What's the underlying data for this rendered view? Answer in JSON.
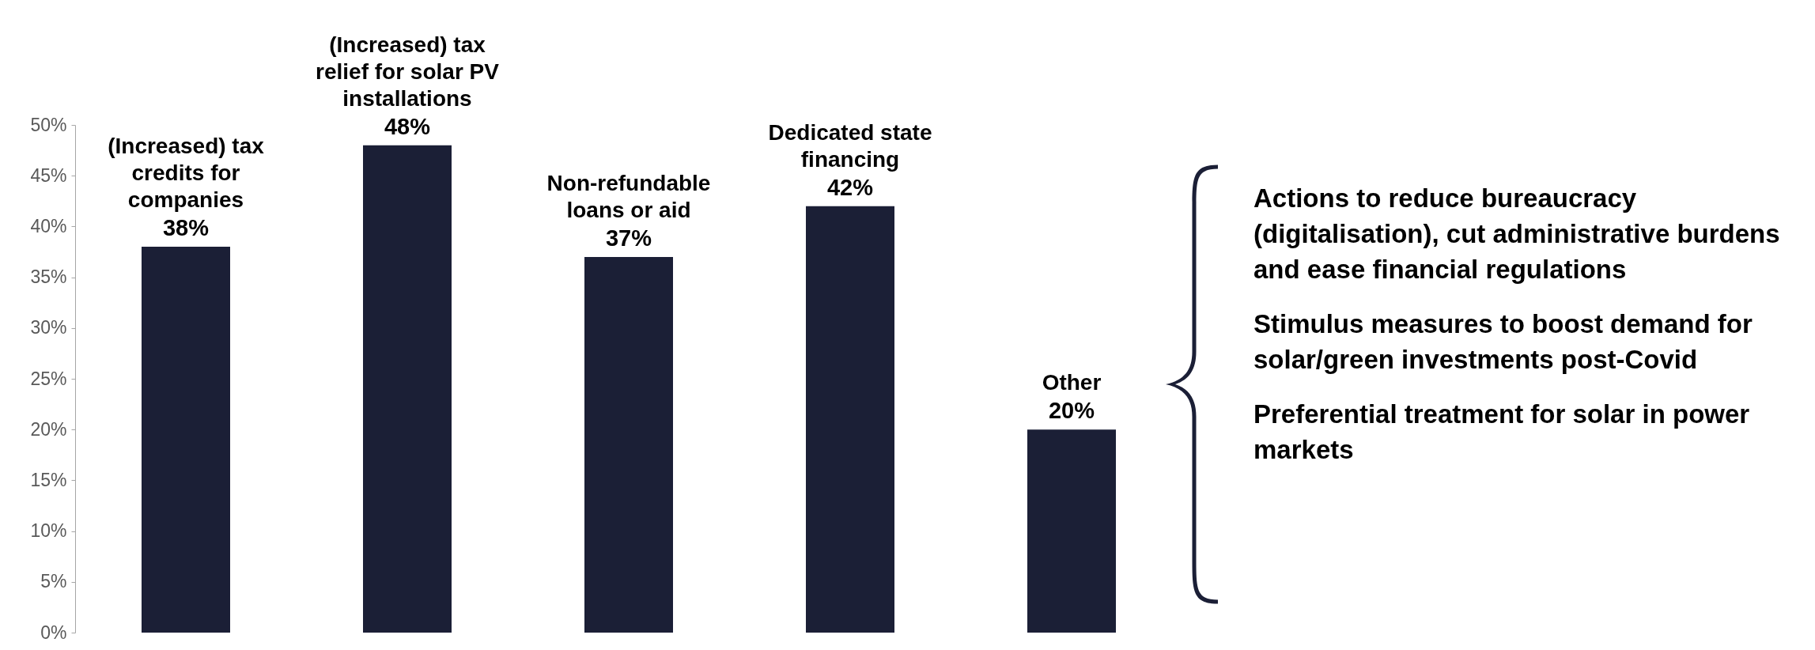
{
  "chart_data": {
    "type": "bar",
    "categories": [
      "(Increased) tax credits for companies",
      "(Increased) tax relief for solar PV installations",
      "Non-refundable loans or aid",
      "Dedicated state financing",
      "Other"
    ],
    "values": [
      38,
      48,
      37,
      42,
      20
    ],
    "value_labels": [
      "38%",
      "48%",
      "37%",
      "42%",
      "20%"
    ],
    "color": "#1b1f36",
    "ylim": [
      0,
      50
    ],
    "yticks": [
      {
        "value": 0,
        "label": "0%"
      },
      {
        "value": 5,
        "label": "5%"
      },
      {
        "value": 10,
        "label": "10%"
      },
      {
        "value": 15,
        "label": "15%"
      },
      {
        "value": 20,
        "label": "20%"
      },
      {
        "value": 25,
        "label": "25%"
      },
      {
        "value": 30,
        "label": "30%"
      },
      {
        "value": 35,
        "label": "35%"
      },
      {
        "value": 40,
        "label": "40%"
      },
      {
        "value": 45,
        "label": "45%"
      },
      {
        "value": 50,
        "label": "50%"
      }
    ],
    "tick_labels": "y",
    "grid": false,
    "annotations": [
      "Actions to reduce bureaucracy (digitalisation), cut administrative burdens and ease financial regulations",
      "Stimulus measures to boost demand for solar/green investments post-Covid",
      "Preferential treatment for solar in power markets"
    ]
  }
}
